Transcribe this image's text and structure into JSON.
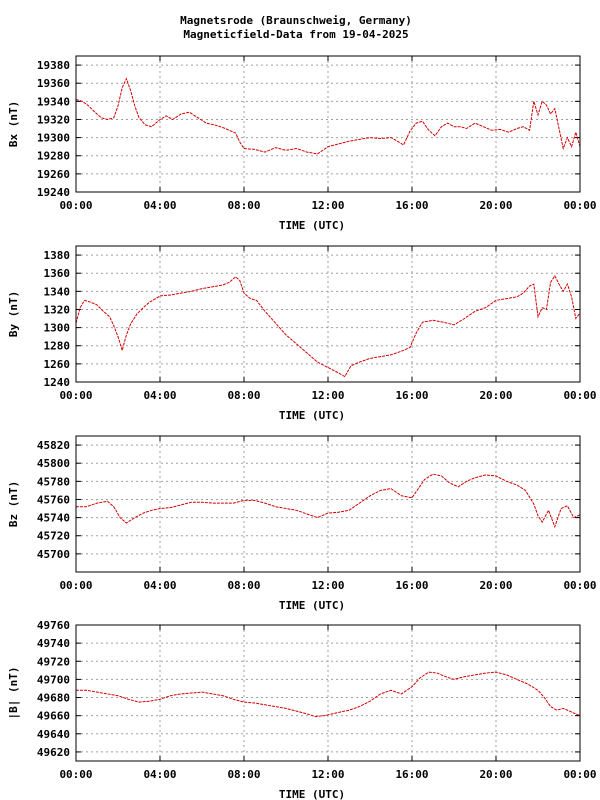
{
  "title_line1": "Magnetsrode (Braunschweig, Germany)",
  "title_line2": "Magneticfield-Data from 19-04-2025",
  "colors": {
    "trace": "#d40000",
    "grid": "#a0a0a0",
    "frame": "#000000"
  },
  "chart_data": [
    {
      "type": "line",
      "id": "bx",
      "ylabel": "Bx (nT)",
      "xlabel": "TIME (UTC)",
      "xlim": [
        0,
        24
      ],
      "x_ticks": [
        "00:00",
        "04:00",
        "08:00",
        "12:00",
        "16:00",
        "20:00",
        "00:00"
      ],
      "ylim": [
        19240,
        19390
      ],
      "y_ticks": [
        19240,
        19260,
        19280,
        19300,
        19320,
        19340,
        19360,
        19380
      ],
      "grid": true,
      "series": [
        {
          "x": [
            0,
            0.3,
            0.6,
            0.9,
            1.2,
            1.5,
            1.8,
            2.0,
            2.2,
            2.4,
            2.6,
            2.8,
            3.0,
            3.3,
            3.6,
            3.8,
            4.0,
            4.3,
            4.6,
            5.0,
            5.4,
            5.8,
            6.2,
            6.6,
            7.0,
            7.3,
            7.6,
            7.8,
            8.0,
            8.5,
            9.0,
            9.5,
            10.0,
            10.5,
            11.0,
            11.5,
            12.0,
            12.5,
            13.0,
            13.5,
            14.0,
            14.5,
            15.0,
            15.3,
            15.6,
            15.9,
            16.2,
            16.5,
            16.8,
            17.1,
            17.4,
            17.7,
            18.0,
            18.3,
            18.6,
            19.0,
            19.4,
            19.8,
            20.2,
            20.6,
            21.0,
            21.3,
            21.6,
            21.8,
            22.0,
            22.2,
            22.4,
            22.6,
            22.8,
            23.0,
            23.2,
            23.4,
            23.6,
            23.8,
            24.0
          ],
          "y": [
            19342,
            19340,
            19335,
            19328,
            19322,
            19320,
            19322,
            19335,
            19355,
            19365,
            19352,
            19335,
            19322,
            19314,
            19312,
            19316,
            19320,
            19324,
            19320,
            19326,
            19328,
            19322,
            19316,
            19314,
            19311,
            19308,
            19305,
            19295,
            19288,
            19287,
            19284,
            19289,
            19286,
            19288,
            19284,
            19282,
            19290,
            19293,
            19296,
            19298,
            19300,
            19299,
            19300,
            19296,
            19292,
            19307,
            19316,
            19318,
            19308,
            19302,
            19312,
            19316,
            19312,
            19312,
            19310,
            19316,
            19312,
            19308,
            19309,
            19306,
            19310,
            19312,
            19308,
            19340,
            19325,
            19340,
            19336,
            19326,
            19332,
            19310,
            19288,
            19300,
            19290,
            19306,
            19290
          ]
        }
      ]
    },
    {
      "type": "line",
      "id": "by",
      "ylabel": "By (nT)",
      "xlabel": "TIME (UTC)",
      "xlim": [
        0,
        24
      ],
      "x_ticks": [
        "00:00",
        "04:00",
        "08:00",
        "12:00",
        "16:00",
        "20:00",
        "00:00"
      ],
      "ylim": [
        1240,
        1390
      ],
      "y_ticks": [
        1240,
        1260,
        1280,
        1300,
        1320,
        1340,
        1360,
        1380
      ],
      "grid": true,
      "series": [
        {
          "x": [
            0,
            0.2,
            0.4,
            0.7,
            1.0,
            1.3,
            1.6,
            1.8,
            2.0,
            2.2,
            2.4,
            2.6,
            2.9,
            3.2,
            3.5,
            3.8,
            4.0,
            4.5,
            5.0,
            5.5,
            6.0,
            6.5,
            7.0,
            7.3,
            7.6,
            7.8,
            8.0,
            8.3,
            8.6,
            9.0,
            9.5,
            10.0,
            10.5,
            11.0,
            11.5,
            12.0,
            12.5,
            12.8,
            13.1,
            13.5,
            14.0,
            14.5,
            15.0,
            15.5,
            15.9,
            16.2,
            16.5,
            17.0,
            17.5,
            18.0,
            18.5,
            19.0,
            19.5,
            20.0,
            20.5,
            21.0,
            21.3,
            21.6,
            21.8,
            22.0,
            22.2,
            22.4,
            22.6,
            22.8,
            23.0,
            23.2,
            23.4,
            23.6,
            23.8,
            24.0
          ],
          "y": [
            1305,
            1322,
            1330,
            1328,
            1325,
            1318,
            1312,
            1302,
            1290,
            1275,
            1292,
            1304,
            1315,
            1322,
            1328,
            1332,
            1335,
            1336,
            1338,
            1340,
            1343,
            1345,
            1347,
            1350,
            1356,
            1352,
            1338,
            1332,
            1330,
            1318,
            1305,
            1292,
            1282,
            1272,
            1262,
            1256,
            1250,
            1246,
            1258,
            1262,
            1266,
            1268,
            1270,
            1274,
            1278,
            1294,
            1306,
            1308,
            1306,
            1303,
            1310,
            1318,
            1322,
            1330,
            1332,
            1334,
            1338,
            1346,
            1348,
            1312,
            1322,
            1320,
            1350,
            1357,
            1348,
            1340,
            1348,
            1334,
            1310,
            1316
          ]
        }
      ]
    },
    {
      "type": "line",
      "id": "bz",
      "ylabel": "Bz (nT)",
      "xlabel": "TIME (UTC)",
      "xlim": [
        0,
        24
      ],
      "x_ticks": [
        "00:00",
        "04:00",
        "08:00",
        "12:00",
        "16:00",
        "20:00",
        "00:00"
      ],
      "ylim": [
        45680,
        45830
      ],
      "y_ticks": [
        45700,
        45720,
        45740,
        45760,
        45780,
        45800,
        45820
      ],
      "grid": true,
      "series": [
        {
          "x": [
            0,
            0.5,
            1.0,
            1.5,
            1.8,
            2.1,
            2.4,
            2.8,
            3.2,
            3.6,
            4.0,
            4.5,
            5.0,
            5.5,
            6.0,
            6.5,
            7.0,
            7.5,
            8.0,
            8.5,
            9.0,
            9.5,
            10.0,
            10.5,
            11.0,
            11.5,
            12.0,
            12.5,
            13.0,
            13.5,
            14.0,
            14.5,
            15.0,
            15.5,
            16.0,
            16.3,
            16.6,
            17.0,
            17.4,
            17.8,
            18.2,
            18.6,
            19.0,
            19.5,
            20.0,
            20.5,
            21.0,
            21.4,
            21.8,
            22.0,
            22.2,
            22.5,
            22.8,
            23.1,
            23.4,
            23.7,
            24.0
          ],
          "y": [
            45752,
            45752,
            45756,
            45758,
            45752,
            45740,
            45734,
            45740,
            45745,
            45748,
            45750,
            45751,
            45754,
            45757,
            45757,
            45756,
            45756,
            45756,
            45759,
            45759,
            45756,
            45752,
            45750,
            45748,
            45744,
            45740,
            45745,
            45746,
            45748,
            45756,
            45764,
            45770,
            45772,
            45764,
            45762,
            45772,
            45782,
            45788,
            45786,
            45778,
            45774,
            45780,
            45784,
            45787,
            45786,
            45780,
            45776,
            45770,
            45755,
            45742,
            45735,
            45748,
            45730,
            45750,
            45753,
            45740,
            45743
          ]
        }
      ]
    },
    {
      "type": "line",
      "id": "bt",
      "ylabel": "|B| (nT)",
      "xlabel": "TIME (UTC)",
      "xlim": [
        0,
        24
      ],
      "x_ticks": [
        "00:00",
        "04:00",
        "08:00",
        "12:00",
        "16:00",
        "20:00",
        "00:00"
      ],
      "ylim": [
        49610,
        49760
      ],
      "y_ticks": [
        49620,
        49640,
        49660,
        49680,
        49700,
        49720,
        49740,
        49760
      ],
      "grid": true,
      "series": [
        {
          "x": [
            0,
            0.5,
            1.0,
            1.5,
            2.0,
            2.5,
            3.0,
            3.5,
            4.0,
            4.5,
            5.0,
            5.5,
            6.0,
            6.5,
            7.0,
            7.5,
            8.0,
            8.5,
            9.0,
            9.5,
            10.0,
            10.5,
            11.0,
            11.4,
            11.8,
            12.2,
            12.6,
            13.0,
            13.5,
            14.0,
            14.5,
            15.0,
            15.5,
            16.0,
            16.4,
            16.8,
            17.2,
            17.6,
            18.0,
            18.5,
            19.0,
            19.5,
            20.0,
            20.5,
            21.0,
            21.5,
            22.0,
            22.3,
            22.6,
            22.9,
            23.2,
            23.5,
            23.8,
            24.0
          ],
          "y": [
            49688,
            49688,
            49686,
            49684,
            49682,
            49678,
            49675,
            49676,
            49678,
            49682,
            49684,
            49685,
            49686,
            49684,
            49682,
            49678,
            49675,
            49674,
            49672,
            49670,
            49668,
            49665,
            49662,
            49659,
            49660,
            49662,
            49664,
            49666,
            49670,
            49676,
            49684,
            49688,
            49684,
            49692,
            49702,
            49708,
            49707,
            49703,
            49700,
            49703,
            49705,
            49707,
            49708,
            49705,
            49700,
            49695,
            49688,
            49680,
            49670,
            49666,
            49668,
            49665,
            49662,
            49660
          ]
        }
      ]
    }
  ]
}
